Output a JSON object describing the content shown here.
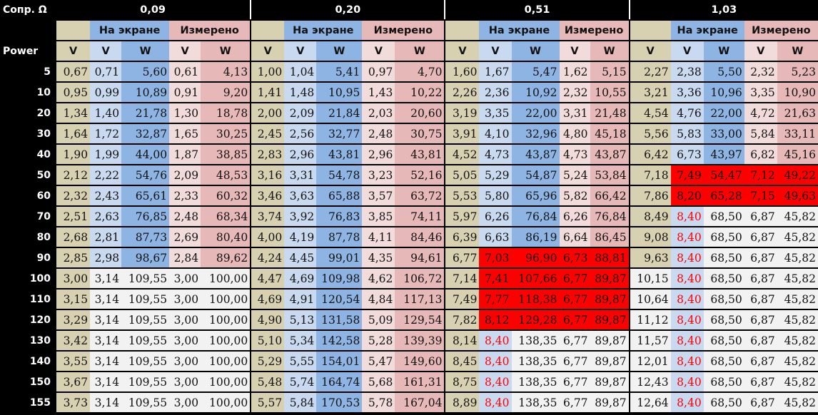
{
  "header": {
    "corner_label": "Сопр. Ω",
    "power_label": "Power",
    "on_screen": "На экране",
    "measured": "Измерено",
    "v": "V",
    "w": "W"
  },
  "groups": [
    "0,09",
    "0,20",
    "0,51",
    "1,03"
  ],
  "rows": [
    {
      "power": "5",
      "cells": [
        [
          "0,67",
          "0,71",
          "5,60",
          "0,61",
          "4,13"
        ],
        [
          "1,00",
          "1,04",
          "5,41",
          "0,97",
          "4,70"
        ],
        [
          "1,60",
          "1,67",
          "5,47",
          "1,62",
          "5,15"
        ],
        [
          "2,27",
          "2,38",
          "5,50",
          "2,32",
          "5,23"
        ]
      ]
    },
    {
      "power": "10",
      "cells": [
        [
          "0,95",
          "0,99",
          "10,89",
          "0,91",
          "9,20"
        ],
        [
          "1,41",
          "1,48",
          "10,95",
          "1,43",
          "10,22"
        ],
        [
          "2,26",
          "2,36",
          "10,92",
          "2,32",
          "10,55"
        ],
        [
          "3,21",
          "3,36",
          "10,96",
          "3,35",
          "10,90"
        ]
      ]
    },
    {
      "power": "20",
      "cells": [
        [
          "1,34",
          "1,40",
          "21,78",
          "1,30",
          "18,78"
        ],
        [
          "2,00",
          "2,09",
          "21,84",
          "2,03",
          "20,60"
        ],
        [
          "3,19",
          "3,35",
          "22,00",
          "3,31",
          "21,48"
        ],
        [
          "4,54",
          "4,76",
          "22,00",
          "4,72",
          "21,63"
        ]
      ]
    },
    {
      "power": "30",
      "cells": [
        [
          "1,64",
          "1,72",
          "32,87",
          "1,65",
          "30,25"
        ],
        [
          "2,45",
          "2,56",
          "32,77",
          "2,48",
          "30,75"
        ],
        [
          "3,91",
          "4,10",
          "32,96",
          "4,80",
          "45,18"
        ],
        [
          "5,56",
          "5,83",
          "33,00",
          "5,84",
          "33,11"
        ]
      ]
    },
    {
      "power": "40",
      "cells": [
        [
          "1,90",
          "1,99",
          "44,00",
          "1,87",
          "38,85"
        ],
        [
          "2,83",
          "2,96",
          "43,81",
          "2,96",
          "43,81"
        ],
        [
          "4,52",
          "4,73",
          "43,87",
          "4,73",
          "43,87"
        ],
        [
          "6,42",
          "6,73",
          "43,97",
          "6,82",
          "45,16"
        ]
      ]
    },
    {
      "power": "50",
      "cells": [
        [
          "2,12",
          "2,22",
          "54,76",
          "2,09",
          "48,53"
        ],
        [
          "3,16",
          "3,31",
          "54,78",
          "3,23",
          "52,16"
        ],
        [
          "5,05",
          "5,29",
          "54,87",
          "5,24",
          "53,84"
        ],
        [
          "7,18",
          "7,49",
          "54,47",
          "7,12",
          "49,22"
        ]
      ]
    },
    {
      "power": "60",
      "cells": [
        [
          "2,32",
          "2,43",
          "65,61",
          "2,33",
          "60,32"
        ],
        [
          "3,46",
          "3,63",
          "65,88",
          "3,57",
          "63,72"
        ],
        [
          "5,53",
          "5,80",
          "65,96",
          "5,82",
          "66,42"
        ],
        [
          "7,86",
          "8,20",
          "65,28",
          "7,15",
          "49,63"
        ]
      ]
    },
    {
      "power": "70",
      "cells": [
        [
          "2,51",
          "2,63",
          "76,85",
          "2,48",
          "68,34"
        ],
        [
          "3,74",
          "3,92",
          "76,83",
          "3,85",
          "74,11"
        ],
        [
          "5,97",
          "6,26",
          "76,84",
          "6,26",
          "76,84"
        ],
        [
          "8,49",
          "8,40",
          "68,50",
          "6,87",
          "45,82"
        ]
      ]
    },
    {
      "power": "80",
      "cells": [
        [
          "2,68",
          "2,81",
          "87,73",
          "2,69",
          "80,40"
        ],
        [
          "4,00",
          "4,19",
          "87,78",
          "4,11",
          "84,46"
        ],
        [
          "6,39",
          "6,63",
          "86,19",
          "6,64",
          "86,45"
        ],
        [
          "9,08",
          "8,40",
          "68,50",
          "6,87",
          "45,82"
        ]
      ]
    },
    {
      "power": "90",
      "cells": [
        [
          "2,85",
          "2,98",
          "98,67",
          "2,84",
          "89,62"
        ],
        [
          "4,24",
          "4,45",
          "99,01",
          "4,35",
          "94,61"
        ],
        [
          "6,77",
          "7,03",
          "96,90",
          "6,73",
          "88,81"
        ],
        [
          "9,63",
          "8,40",
          "68,50",
          "6,87",
          "45,82"
        ]
      ]
    },
    {
      "power": "100",
      "cells": [
        [
          "3,00",
          "3,14",
          "109,55",
          "3,00",
          "100,00"
        ],
        [
          "4,47",
          "4,69",
          "109,98",
          "4,62",
          "106,72"
        ],
        [
          "7,14",
          "7,41",
          "107,66",
          "6,77",
          "89,87"
        ],
        [
          "10,15",
          "8,40",
          "68,50",
          "6,87",
          "45,82"
        ]
      ]
    },
    {
      "power": "110",
      "cells": [
        [
          "3,15",
          "3,14",
          "109,55",
          "3,00",
          "100,00"
        ],
        [
          "4,69",
          "4,91",
          "120,54",
          "4,84",
          "117,13"
        ],
        [
          "7,49",
          "7,77",
          "118,38",
          "6,77",
          "89,87"
        ],
        [
          "10,64",
          "8,40",
          "68,50",
          "6,87",
          "45,82"
        ]
      ]
    },
    {
      "power": "120",
      "cells": [
        [
          "3,29",
          "3,14",
          "109,55",
          "3,00",
          "100,00"
        ],
        [
          "4,90",
          "5,13",
          "131,58",
          "5,09",
          "129,54"
        ],
        [
          "7,82",
          "8,12",
          "129,28",
          "6,77",
          "89,87"
        ],
        [
          "11,12",
          "8,40",
          "68,50",
          "6,87",
          "45,82"
        ]
      ]
    },
    {
      "power": "130",
      "cells": [
        [
          "3,42",
          "3,14",
          "109,55",
          "3,00",
          "100,00"
        ],
        [
          "5,10",
          "5,34",
          "142,58",
          "5,28",
          "139,39"
        ],
        [
          "8,14",
          "8,40",
          "138,35",
          "6,77",
          "89,87"
        ],
        [
          "11,57",
          "8,40",
          "68,50",
          "6,87",
          "45,82"
        ]
      ]
    },
    {
      "power": "140",
      "cells": [
        [
          "3,55",
          "3,14",
          "109,55",
          "3,00",
          "100,00"
        ],
        [
          "5,29",
          "5,55",
          "154,01",
          "5,47",
          "149,60"
        ],
        [
          "8,45",
          "8,40",
          "138,35",
          "6,77",
          "89,87"
        ],
        [
          "12,01",
          "8,40",
          "68,50",
          "6,87",
          "45,82"
        ]
      ]
    },
    {
      "power": "150",
      "cells": [
        [
          "3,67",
          "3,14",
          "109,55",
          "3,00",
          "100,00"
        ],
        [
          "5,48",
          "5,74",
          "164,74",
          "5,68",
          "161,31"
        ],
        [
          "8,75",
          "8,40",
          "138,35",
          "6,77",
          "89,87"
        ],
        [
          "12,43",
          "8,40",
          "68,50",
          "6,87",
          "45,82"
        ]
      ]
    },
    {
      "power": "155",
      "cells": [
        [
          "3,73",
          "3,14",
          "109,55",
          "3,00",
          "100,00"
        ],
        [
          "5,57",
          "5,84",
          "170,53",
          "5,78",
          "167,04"
        ],
        [
          "8,89",
          "8,40",
          "138,35",
          "6,77",
          "89,87"
        ],
        [
          "12,64",
          "8,40",
          "68,50",
          "6,87",
          "45,82"
        ]
      ]
    }
  ],
  "highlights": {
    "default_colors": [
      "#d7d1b1",
      "#c9d9f0",
      "#8eb4e3",
      "#f2dcdb",
      "#e6b8b7"
    ],
    "saturated_color": "#f2f2f2",
    "limit_bg_color": "#ff0000",
    "limit_text_color": "#ff0000",
    "saturated_cells": [
      {
        "row": "100",
        "group": 0,
        "cols": [
          1,
          2,
          3,
          4
        ]
      },
      {
        "row": "110",
        "group": 0,
        "cols": [
          1,
          2,
          3,
          4
        ]
      },
      {
        "row": "120",
        "group": 0,
        "cols": [
          1,
          2,
          3,
          4
        ]
      },
      {
        "row": "130",
        "group": 0,
        "cols": [
          1,
          2,
          3,
          4
        ]
      },
      {
        "row": "140",
        "group": 0,
        "cols": [
          1,
          2,
          3,
          4
        ]
      },
      {
        "row": "150",
        "group": 0,
        "cols": [
          1,
          2,
          3,
          4
        ]
      },
      {
        "row": "155",
        "group": 0,
        "cols": [
          1,
          2,
          3,
          4
        ]
      },
      {
        "row": "100",
        "group": 3,
        "cols": [
          0,
          2,
          3,
          4
        ]
      },
      {
        "row": "110",
        "group": 3,
        "cols": [
          0,
          2,
          3,
          4
        ]
      },
      {
        "row": "120",
        "group": 3,
        "cols": [
          0,
          2,
          3,
          4
        ]
      },
      {
        "row": "130",
        "group": 2,
        "cols": [
          2,
          3,
          4
        ]
      },
      {
        "row": "140",
        "group": 2,
        "cols": [
          2,
          3,
          4
        ]
      },
      {
        "row": "150",
        "group": 2,
        "cols": [
          2,
          3,
          4
        ]
      },
      {
        "row": "155",
        "group": 2,
        "cols": [
          2,
          3,
          4
        ]
      },
      {
        "row": "130",
        "group": 3,
        "cols": [
          0,
          2,
          3,
          4
        ]
      },
      {
        "row": "140",
        "group": 3,
        "cols": [
          0,
          2,
          3,
          4
        ]
      },
      {
        "row": "150",
        "group": 3,
        "cols": [
          0,
          2,
          3,
          4
        ]
      },
      {
        "row": "155",
        "group": 3,
        "cols": [
          0,
          2,
          3,
          4
        ]
      },
      {
        "row": "70",
        "group": 3,
        "cols": [
          2,
          3,
          4
        ]
      },
      {
        "row": "80",
        "group": 3,
        "cols": [
          2,
          3,
          4
        ]
      },
      {
        "row": "90",
        "group": 3,
        "cols": [
          2,
          3,
          4
        ]
      }
    ],
    "red_bg_cells": [
      {
        "row": "50",
        "group": 3,
        "cols": [
          1,
          2,
          3,
          4
        ]
      },
      {
        "row": "60",
        "group": 3,
        "cols": [
          1,
          2,
          3,
          4
        ]
      },
      {
        "row": "90",
        "group": 2,
        "cols": [
          1,
          2,
          3,
          4
        ]
      },
      {
        "row": "100",
        "group": 2,
        "cols": [
          1,
          2,
          3,
          4
        ]
      },
      {
        "row": "110",
        "group": 2,
        "cols": [
          1,
          2,
          3,
          4
        ]
      },
      {
        "row": "120",
        "group": 2,
        "cols": [
          1,
          2,
          3,
          4
        ]
      }
    ],
    "red_text_cells": [
      {
        "row": "70",
        "group": 3,
        "cols": [
          1
        ]
      },
      {
        "row": "80",
        "group": 3,
        "cols": [
          1
        ]
      },
      {
        "row": "90",
        "group": 3,
        "cols": [
          1
        ]
      },
      {
        "row": "100",
        "group": 3,
        "cols": [
          1
        ]
      },
      {
        "row": "110",
        "group": 3,
        "cols": [
          1
        ]
      },
      {
        "row": "120",
        "group": 3,
        "cols": [
          1
        ]
      },
      {
        "row": "130",
        "group": 3,
        "cols": [
          1
        ]
      },
      {
        "row": "140",
        "group": 3,
        "cols": [
          1
        ]
      },
      {
        "row": "150",
        "group": 3,
        "cols": [
          1
        ]
      },
      {
        "row": "155",
        "group": 3,
        "cols": [
          1
        ]
      },
      {
        "row": "130",
        "group": 2,
        "cols": [
          1
        ]
      },
      {
        "row": "140",
        "group": 2,
        "cols": [
          1
        ]
      },
      {
        "row": "150",
        "group": 2,
        "cols": [
          1
        ]
      },
      {
        "row": "155",
        "group": 2,
        "cols": [
          1
        ]
      }
    ]
  }
}
